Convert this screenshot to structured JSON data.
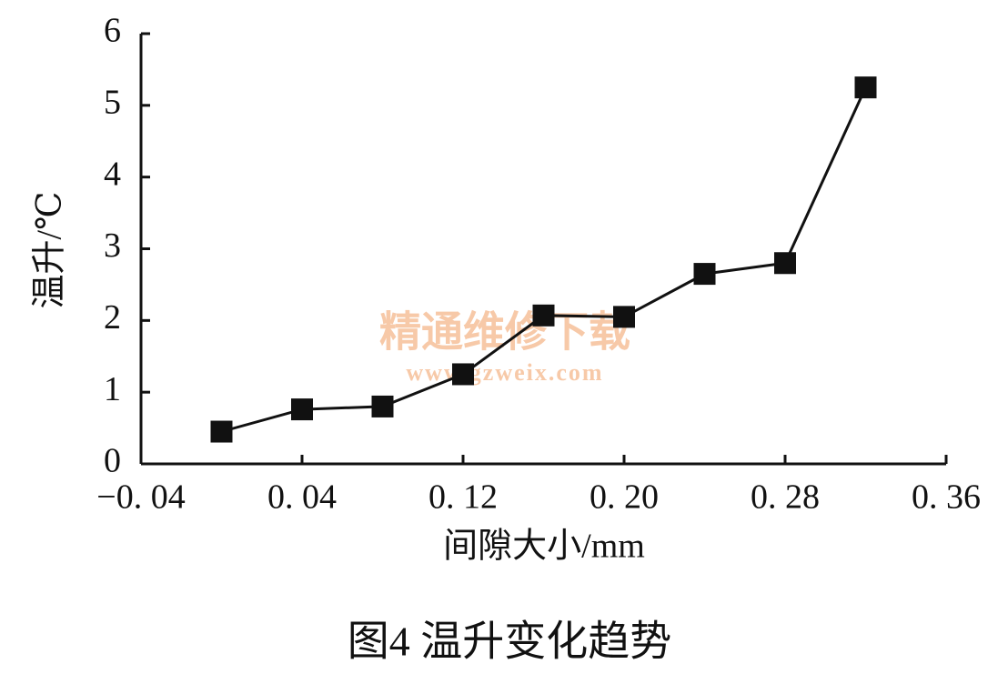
{
  "chart_data": {
    "type": "line",
    "title": "图4 温升变化趋势",
    "x_label": "间隙大小/mm",
    "y_label": "温升/℃",
    "watermark": [
      "精通维修下载",
      "www.gzweix.com"
    ],
    "x": [
      0.0,
      0.04,
      0.08,
      0.12,
      0.16,
      0.2,
      0.24,
      0.28,
      0.32
    ],
    "series": [
      {
        "color": "#111111",
        "values": [
          0.45,
          0.76,
          0.8,
          1.25,
          2.07,
          2.05,
          2.65,
          2.8,
          5.25
        ]
      }
    ],
    "xlim": [
      -0.04,
      0.36
    ],
    "xticks": [
      {
        "value": -0.04,
        "label": "−0. 04"
      },
      {
        "value": 0.04,
        "label": "0. 04"
      },
      {
        "value": 0.12,
        "label": "0. 12"
      },
      {
        "value": 0.2,
        "label": "0. 20"
      },
      {
        "value": 0.28,
        "label": "0. 28"
      },
      {
        "value": 0.36,
        "label": "0. 36"
      }
    ],
    "ylim": [
      0,
      6
    ],
    "yticks": [
      0,
      1,
      2,
      3,
      4,
      5,
      6
    ],
    "grid": false
  }
}
